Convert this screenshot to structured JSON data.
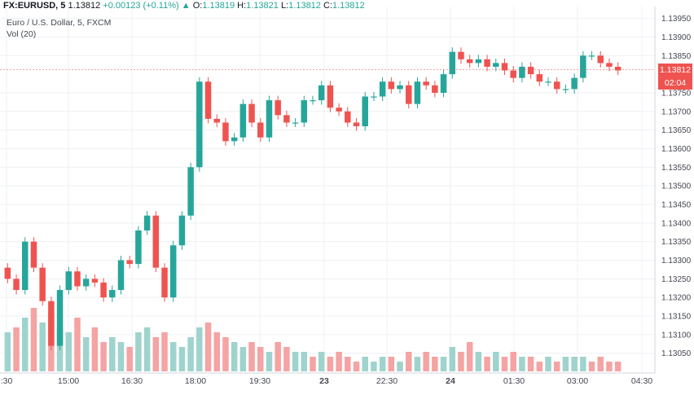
{
  "header": {
    "symbol": "FX:EURUSD, 5",
    "last": "1.13812",
    "change": "+0.00123 (+0.11%)",
    "o_label": "O:",
    "o_value": "1.13819",
    "h_label": "H:",
    "h_value": "1.13821",
    "l_label": "L:",
    "l_value": "1.13812",
    "c_label": "C:",
    "c_value": "1.13812"
  },
  "subtitle": "Euro / U.S. Dollar, 5, FXCM",
  "volume_label": "Vol (20)",
  "price_tag": {
    "price": "1.13812",
    "countdown": "02:04"
  },
  "colors": {
    "up": "#26a69a",
    "down": "#ef5350",
    "vol_up": "#9fd3cd",
    "vol_down": "#f5a3a3",
    "grid": "#eef0f3"
  },
  "chart_data": {
    "type": "candlestick",
    "title": "Euro / U.S. Dollar, 5, FXCM",
    "ylim": [
      1.1301,
      1.1396
    ],
    "y_ticks": [
      "1.13950",
      "1.13900",
      "1.13850",
      "1.13812",
      "1.13750",
      "1.13700",
      "1.13650",
      "1.13600",
      "1.13550",
      "1.13500",
      "1.13450",
      "1.13400",
      "1.13350",
      "1.13300",
      "1.13250",
      "1.13200",
      "1.13150",
      "1.13100",
      "1.13050"
    ],
    "x_ticks": [
      ":30",
      "15:00",
      "16:30",
      "18:00",
      "19:30",
      "23",
      "22:30",
      "24",
      "01:30",
      "03:00",
      "04:30"
    ],
    "last_price": 1.13812,
    "close_series": [
      1.1325,
      1.1322,
      1.1335,
      1.1328,
      1.1319,
      1.1307,
      1.1322,
      1.1327,
      1.1323,
      1.1325,
      1.1324,
      1.132,
      1.1322,
      1.133,
      1.1329,
      1.1338,
      1.1342,
      1.1328,
      1.132,
      1.1334,
      1.1342,
      1.1355,
      1.1378,
      1.1368,
      1.1367,
      1.1362,
      1.1363,
      1.1372,
      1.1367,
      1.1363,
      1.1373,
      1.1369,
      1.1367,
      1.1367,
      1.1373,
      1.1373,
      1.1377,
      1.1371,
      1.137,
      1.1367,
      1.1366,
      1.1374,
      1.1374,
      1.1378,
      1.1376,
      1.1377,
      1.1372,
      1.1378,
      1.1377,
      1.1375,
      1.138,
      1.1386,
      1.1384,
      1.1383,
      1.1384,
      1.1382,
      1.1383,
      1.1381,
      1.1379,
      1.1382,
      1.138,
      1.1378,
      1.1378,
      1.1376,
      1.1376,
      1.1379,
      1.1385,
      1.1385,
      1.1383,
      1.1382,
      1.1381
    ],
    "volume_series": [
      8,
      9,
      11,
      13,
      10,
      12,
      9,
      8,
      11,
      7,
      9,
      6,
      7,
      6,
      5,
      8,
      9,
      7,
      8,
      6,
      5,
      7,
      9,
      10,
      8,
      7,
      6,
      5,
      6,
      5,
      4,
      6,
      5,
      4,
      4,
      3,
      4,
      3,
      4,
      3,
      2,
      3,
      2,
      3,
      3,
      2,
      4,
      3,
      4,
      3,
      3,
      5,
      4,
      6,
      4,
      3,
      4,
      3,
      4,
      3,
      3,
      2,
      3,
      2,
      3,
      3,
      3,
      2,
      3,
      2,
      2
    ],
    "volume_dir": [
      1,
      0,
      1,
      0,
      1,
      0,
      1,
      1,
      0,
      1,
      0,
      0,
      1,
      1,
      0,
      1,
      1,
      0,
      0,
      1,
      1,
      1,
      1,
      0,
      0,
      0,
      1,
      1,
      0,
      0,
      1,
      0,
      0,
      1,
      1,
      0,
      1,
      0,
      0,
      0,
      0,
      1,
      1,
      1,
      0,
      1,
      0,
      1,
      0,
      0,
      1,
      1,
      0,
      0,
      1,
      0,
      1,
      0,
      0,
      1,
      0,
      0,
      1,
      0,
      1,
      1,
      1,
      0,
      0,
      0,
      0
    ]
  }
}
